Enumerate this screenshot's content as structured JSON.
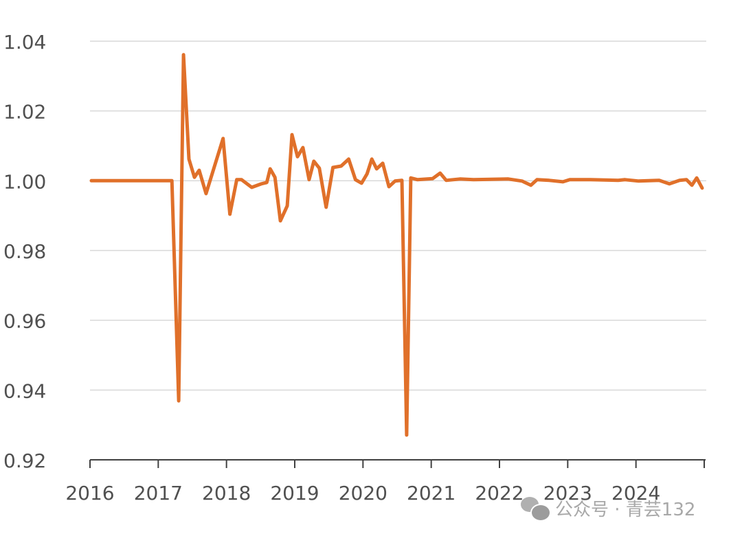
{
  "chart_data": {
    "type": "line",
    "title": "",
    "xlabel": "",
    "ylabel": "",
    "xlim": [
      2016,
      2025
    ],
    "ylim": [
      0.92,
      1.04
    ],
    "x_ticks": [
      "2016",
      "2017",
      "2018",
      "2019",
      "2020",
      "2021",
      "2022",
      "2023",
      "2024"
    ],
    "y_ticks": [
      "0.92",
      "0.94",
      "0.96",
      "0.98",
      "1.00",
      "1.02",
      "1.04"
    ],
    "grid": "horizontal",
    "line_color": "#e0702a",
    "series": [
      {
        "x": [
          2016.02,
          2016.19,
          2017.0,
          2017.2,
          2017.3,
          2017.37,
          2017.45,
          2017.53,
          2017.6,
          2017.7,
          2017.95,
          2018.05,
          2018.15,
          2018.22,
          2018.37,
          2018.51,
          2018.59,
          2018.64,
          2018.71,
          2018.79,
          2018.89,
          2018.96,
          2019.04,
          2019.12,
          2019.21,
          2019.28,
          2019.36,
          2019.46,
          2019.56,
          2019.68,
          2019.79,
          2019.89,
          2019.98,
          2020.06,
          2020.13,
          2020.2,
          2020.29,
          2020.38,
          2020.47,
          2020.57,
          2020.64,
          2020.7,
          2020.8,
          2021.02,
          2021.13,
          2021.22,
          2021.42,
          2021.62,
          2022.13,
          2022.33,
          2022.46,
          2022.55,
          2022.73,
          2022.93,
          2023.03,
          2023.33,
          2023.74,
          2023.84,
          2024.04,
          2024.34,
          2024.49,
          2024.64,
          2024.74,
          2024.82,
          2024.89,
          2024.97
        ],
        "y": [
          1.0,
          1.0,
          1.0,
          1.0,
          0.9369,
          1.0361,
          1.0062,
          1.001,
          1.003,
          0.9963,
          1.0121,
          0.9904,
          1.0003,
          1.0003,
          0.9981,
          0.9991,
          0.9995,
          1.0034,
          1.001,
          0.9885,
          0.9928,
          1.0132,
          1.0069,
          1.0095,
          1.0003,
          1.0056,
          1.0036,
          0.9924,
          1.0038,
          1.0042,
          1.0062,
          1.0003,
          0.9993,
          1.002,
          1.0062,
          1.0034,
          1.005,
          0.9983,
          0.9999,
          1.0001,
          0.9271,
          1.0008,
          1.0003,
          1.0006,
          1.0022,
          1.0001,
          1.0005,
          1.0003,
          1.0005,
          0.9999,
          0.9987,
          1.0003,
          1.0001,
          0.9997,
          1.0003,
          1.0003,
          1.0001,
          1.0003,
          0.9999,
          1.0001,
          0.9991,
          1.0001,
          1.0003,
          0.9987,
          1.0008,
          0.9979
        ]
      }
    ]
  },
  "watermark": {
    "text": "公众号 · 青芸132",
    "icon": "wechat-icon"
  }
}
